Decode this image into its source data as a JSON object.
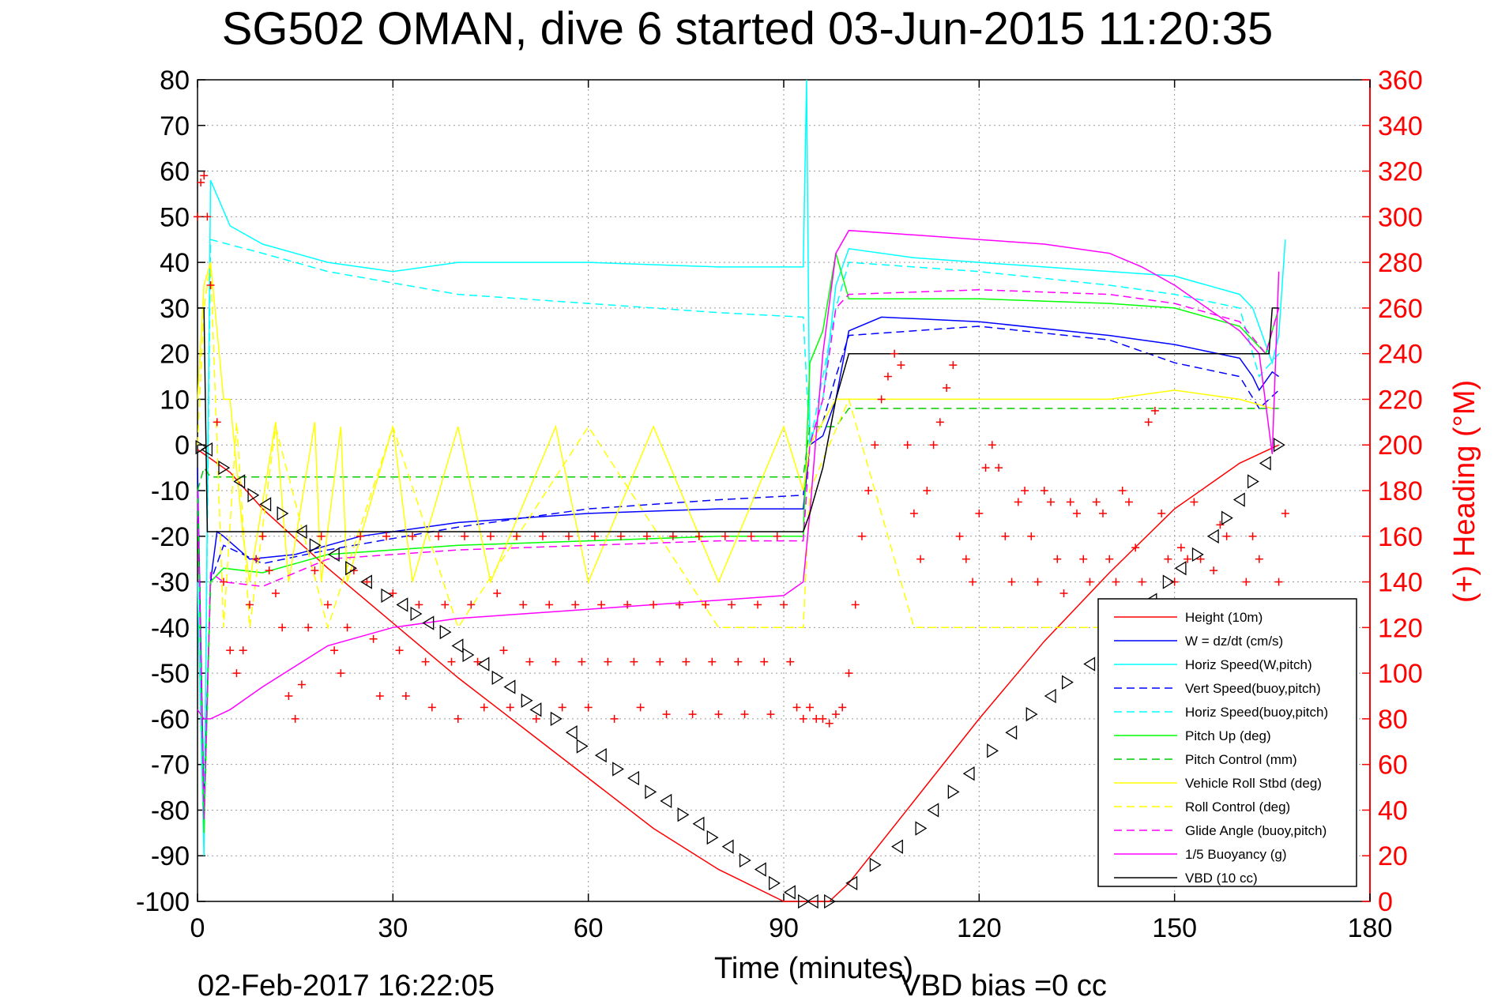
{
  "chart_data": {
    "type": "line",
    "title": "SG502 OMAN, dive 6 started 03-Jun-2015 11:20:35",
    "xlabel": "Time (minutes)",
    "ylabel_right": "(+) Heading (°M)",
    "xlim": [
      0,
      180
    ],
    "ylim_left": [
      -100,
      80
    ],
    "ylim_right": [
      0,
      360
    ],
    "x_ticks": [
      0,
      30,
      60,
      90,
      120,
      150,
      180
    ],
    "y_ticks_left": [
      80,
      70,
      60,
      50,
      40,
      30,
      20,
      10,
      0,
      -10,
      -20,
      -30,
      -40,
      -50,
      -60,
      -70,
      -80,
      -90,
      -100
    ],
    "y_ticks_right": [
      360,
      340,
      320,
      300,
      280,
      260,
      240,
      220,
      200,
      180,
      160,
      140,
      120,
      100,
      80,
      60,
      40,
      20,
      0
    ],
    "grid": true,
    "legend_position": "bottom-right",
    "footer_date": "02-Feb-2017 16:22:05",
    "footer_note": "VBD bias =0 cc",
    "series": [
      {
        "name": "Height (10m)",
        "color": "#ff0000",
        "dash": "solid",
        "x": [
          0,
          5,
          10,
          20,
          30,
          40,
          50,
          60,
          70,
          80,
          90,
          93,
          97,
          100,
          110,
          120,
          130,
          140,
          150,
          160,
          166
        ],
        "y": [
          -1,
          -6,
          -14,
          -27,
          -39,
          -51,
          -62,
          -73,
          -84,
          -93,
          -100,
          -100,
          -100,
          -96,
          -78,
          -60,
          -43,
          -28,
          -14,
          -4,
          0
        ]
      },
      {
        "name": "W = dz/dt (cm/s)",
        "color": "#0000ff",
        "dash": "solid",
        "x": [
          0,
          1,
          2,
          3,
          4,
          8,
          15,
          25,
          40,
          60,
          80,
          93,
          94,
          96,
          98,
          100,
          105,
          120,
          140,
          150,
          160,
          162,
          163,
          165,
          166
        ],
        "y": [
          -5,
          -80,
          -30,
          -19,
          -20,
          -25,
          -24,
          -20,
          -17,
          -15,
          -14,
          -14,
          0,
          2,
          10,
          25,
          28,
          27,
          24,
          22,
          19,
          15,
          12,
          16,
          15
        ]
      },
      {
        "name": "Horiz Speed(W,pitch)",
        "color": "#00ffff",
        "dash": "solid",
        "x": [
          0,
          1,
          2,
          5,
          10,
          20,
          30,
          40,
          60,
          80,
          93,
          93.5,
          94,
          96,
          98,
          100,
          110,
          130,
          150,
          160,
          162,
          164,
          165,
          166,
          167
        ],
        "y": [
          -30,
          -90,
          58,
          48,
          44,
          40,
          38,
          40,
          40,
          39,
          39,
          80,
          0,
          10,
          35,
          43,
          41,
          39,
          37,
          33,
          30,
          22,
          18,
          24,
          45
        ]
      },
      {
        "name": "Vert Speed(buoy,pitch)",
        "color": "#0000ff",
        "dash": "dashed",
        "x": [
          0,
          1,
          2,
          4,
          10,
          20,
          40,
          60,
          80,
          93,
          94,
          96,
          98,
          100,
          120,
          140,
          150,
          160,
          163,
          166
        ],
        "y": [
          -10,
          -80,
          -30,
          -22,
          -26,
          -23,
          -18,
          -14,
          -12,
          -11,
          0,
          5,
          15,
          24,
          26,
          23,
          18,
          15,
          8,
          12
        ]
      },
      {
        "name": "Horiz Speed(buoy,pitch)",
        "color": "#00ffff",
        "dash": "dashed",
        "x": [
          0,
          1,
          2,
          10,
          20,
          40,
          60,
          80,
          93,
          94,
          96,
          98,
          100,
          120,
          140,
          150,
          160,
          163,
          166
        ],
        "y": [
          -10,
          -85,
          45,
          42,
          38,
          33,
          31,
          29,
          28,
          0,
          15,
          30,
          40,
          38,
          35,
          33,
          30,
          15,
          20
        ]
      },
      {
        "name": "Pitch Up (deg)",
        "color": "#00ff00",
        "dash": "solid",
        "x": [
          0,
          1,
          2,
          4,
          10,
          20,
          40,
          60,
          80,
          93,
          94,
          96,
          98,
          100,
          120,
          140,
          150,
          160,
          164,
          166
        ],
        "y": [
          -10,
          -85,
          -30,
          -27,
          -28,
          -24,
          -22,
          -21,
          -20,
          -20,
          18,
          25,
          42,
          32,
          32,
          31,
          30,
          26,
          20,
          30
        ]
      },
      {
        "name": "Pitch Control (mm)",
        "color": "#00cc00",
        "dash": "dashed",
        "x": [
          0,
          1,
          2,
          3,
          93,
          94,
          98,
          100,
          165,
          166
        ],
        "y": [
          -10,
          -5,
          -7,
          -7,
          -7,
          4,
          4,
          8,
          8,
          8
        ]
      },
      {
        "name": "Vehicle Roll Stbd (deg)",
        "color": "#ffff00",
        "dash": "solid",
        "x": [
          0,
          1,
          2,
          4,
          5,
          7,
          8,
          12,
          14,
          18,
          19,
          22,
          23,
          30,
          33,
          40,
          45,
          55,
          60,
          70,
          80,
          90,
          93,
          94,
          98,
          100,
          110,
          120,
          130,
          140,
          150,
          160,
          165
        ],
        "y": [
          10,
          35,
          40,
          10,
          10,
          -20,
          -30,
          5,
          -30,
          5,
          -30,
          4,
          -30,
          4,
          -30,
          4,
          -30,
          4,
          -30,
          4,
          -30,
          4,
          -10,
          0,
          10,
          10,
          10,
          10,
          10,
          10,
          12,
          10,
          8
        ]
      },
      {
        "name": "Roll Control (deg)",
        "color": "#ffff00",
        "dash": "dashed",
        "x": [
          0,
          1,
          2,
          4,
          6,
          8,
          12,
          20,
          30,
          40,
          60,
          80,
          93,
          94,
          100,
          110,
          130,
          150,
          166
        ],
        "y": [
          0,
          30,
          40,
          -40,
          5,
          -40,
          4,
          -40,
          4,
          -40,
          4,
          -40,
          -40,
          -10,
          10,
          -40,
          -40,
          -40,
          -40
        ]
      },
      {
        "name": "Glide Angle (buoy,pitch)",
        "color": "#ff00ff",
        "dash": "dashed",
        "x": [
          0,
          1,
          2,
          4,
          10,
          20,
          40,
          60,
          80,
          93,
          94,
          96,
          98,
          100,
          120,
          140,
          150,
          160,
          164,
          166
        ],
        "y": [
          -10,
          -82,
          -28,
          -30,
          -31,
          -25,
          -23,
          -22,
          -21,
          -21,
          0,
          10,
          30,
          33,
          34,
          33,
          31,
          27,
          20,
          30
        ]
      },
      {
        "name": "1/5 Buoyancy (g)",
        "color": "#ff00ff",
        "dash": "solid",
        "x": [
          0,
          1,
          2,
          5,
          10,
          20,
          30,
          40,
          50,
          60,
          70,
          80,
          90,
          93,
          94,
          96,
          98,
          100,
          110,
          120,
          130,
          140,
          145,
          150,
          155,
          160,
          163,
          165,
          166
        ],
        "y": [
          -58,
          -60,
          -60,
          -58,
          -53,
          -44,
          -40,
          -38,
          -37,
          -36,
          -35,
          -34,
          -33,
          -30,
          -15,
          20,
          42,
          47,
          46,
          45,
          44,
          42,
          39,
          35,
          30,
          25,
          20,
          -2,
          38
        ]
      },
      {
        "name": "VBD (10 cc)",
        "color": "#000000",
        "dash": "solid",
        "x": [
          0,
          1,
          1.5,
          2,
          93,
          94,
          96,
          98,
          100,
          164.5,
          165,
          166
        ],
        "y": [
          30,
          30,
          -19,
          -19,
          -19,
          -15,
          -5,
          10,
          20,
          20,
          30,
          30
        ]
      }
    ],
    "heading_markers": {
      "name": "(+) Heading (°M)",
      "color": "#ff0000",
      "marker": "+",
      "axis": "right",
      "x": [
        0,
        0.5,
        1,
        1.5,
        2,
        3,
        4,
        5,
        6,
        7,
        8,
        9,
        10,
        11,
        12,
        13,
        14,
        15,
        16,
        17,
        18,
        19,
        20,
        21,
        22,
        23,
        24,
        25,
        26,
        27,
        28,
        29,
        30,
        31,
        32,
        33,
        34,
        35,
        36,
        37,
        38,
        39,
        40,
        41,
        42,
        43,
        44,
        45,
        46,
        47,
        48,
        49,
        50,
        51,
        52,
        53,
        54,
        55,
        56,
        57,
        58,
        59,
        60,
        61,
        62,
        63,
        64,
        65,
        66,
        67,
        68,
        69,
        70,
        71,
        72,
        73,
        74,
        75,
        76,
        77,
        78,
        79,
        80,
        81,
        82,
        83,
        84,
        85,
        86,
        87,
        88,
        89,
        90,
        91,
        92,
        93,
        94,
        95,
        96,
        97,
        98,
        99,
        100,
        101,
        102,
        103,
        104,
        105,
        106,
        107,
        108,
        109,
        110,
        111,
        112,
        113,
        114,
        115,
        116,
        117,
        118,
        119,
        120,
        121,
        122,
        123,
        124,
        125,
        126,
        127,
        128,
        129,
        130,
        131,
        132,
        133,
        134,
        135,
        136,
        137,
        138,
        139,
        140,
        141,
        142,
        143,
        144,
        145,
        146,
        147,
        148,
        149,
        150,
        151,
        152,
        153,
        154,
        155,
        156,
        157,
        158,
        159,
        160,
        161,
        162,
        163,
        164,
        165,
        166,
        167
      ],
      "y": [
        300,
        315,
        318,
        300,
        270,
        210,
        140,
        110,
        100,
        110,
        130,
        150,
        160,
        145,
        135,
        120,
        90,
        80,
        95,
        120,
        145,
        160,
        130,
        110,
        100,
        120,
        145,
        160,
        140,
        115,
        90,
        160,
        135,
        110,
        90,
        160,
        130,
        105,
        85,
        160,
        130,
        105,
        80,
        160,
        130,
        105,
        85,
        160,
        135,
        110,
        85,
        160,
        130,
        105,
        80,
        160,
        130,
        105,
        85,
        160,
        130,
        105,
        85,
        160,
        130,
        105,
        80,
        160,
        130,
        105,
        85,
        160,
        130,
        105,
        82,
        160,
        130,
        105,
        82,
        160,
        130,
        105,
        82,
        160,
        130,
        105,
        82,
        160,
        130,
        105,
        82,
        160,
        130,
        105,
        85,
        80,
        85,
        80,
        80,
        78,
        82,
        85,
        100,
        130,
        160,
        180,
        200,
        220,
        230,
        240,
        235,
        200,
        170,
        150,
        180,
        200,
        210,
        225,
        235,
        160,
        150,
        140,
        170,
        190,
        200,
        190,
        160,
        140,
        175,
        180,
        160,
        140,
        180,
        175,
        150,
        135,
        175,
        170,
        150,
        140,
        175,
        170,
        150,
        140,
        180,
        175,
        155,
        140,
        210,
        215,
        170,
        150,
        140,
        155,
        150,
        175,
        150,
        130,
        145,
        165,
        160,
        125,
        120,
        140,
        160,
        150,
        130,
        120,
        140,
        170
      ]
    },
    "height_markers": {
      "name": "Height (10m)",
      "color": "#000000",
      "marker": "triangle",
      "x": [
        0.5,
        1.5,
        4,
        6.5,
        8.5,
        10.5,
        13,
        16,
        18,
        21,
        23.5,
        26,
        29,
        31.5,
        33.5,
        35.5,
        38,
        40,
        41.5,
        44,
        46,
        48,
        50.5,
        52,
        55,
        57.5,
        59,
        62,
        64.5,
        67,
        69.5,
        72,
        74.5,
        77,
        79,
        81.5,
        84,
        86.5,
        88.5,
        91,
        93,
        94.5,
        97,
        100.5,
        104,
        107.5,
        111,
        113,
        116,
        118.5,
        122,
        125,
        128,
        131,
        133.5,
        137,
        139.5,
        142,
        144,
        146.5,
        149,
        151,
        153.5,
        156,
        158,
        160,
        162,
        164,
        166
      ],
      "y": [
        -0.5,
        -1,
        -5,
        -8,
        -11,
        -13,
        -15,
        -19,
        -22,
        -24,
        -27,
        -30,
        -33,
        -35,
        -37,
        -39,
        -41,
        -44,
        -46,
        -48,
        -51,
        -53,
        -56,
        -58,
        -60,
        -63,
        -66,
        -68,
        -71,
        -73,
        -76,
        -78,
        -81,
        -83,
        -86,
        -88,
        -91,
        -93,
        -96,
        -98,
        -100,
        -100,
        -100,
        -96,
        -92,
        -88,
        -84,
        -80,
        -76,
        -72,
        -67,
        -63,
        -59,
        -55,
        -52,
        -48,
        -45,
        -41,
        -37,
        -34,
        -30,
        -27,
        -24,
        -20,
        -16,
        -12,
        -8,
        -4,
        0
      ]
    }
  }
}
